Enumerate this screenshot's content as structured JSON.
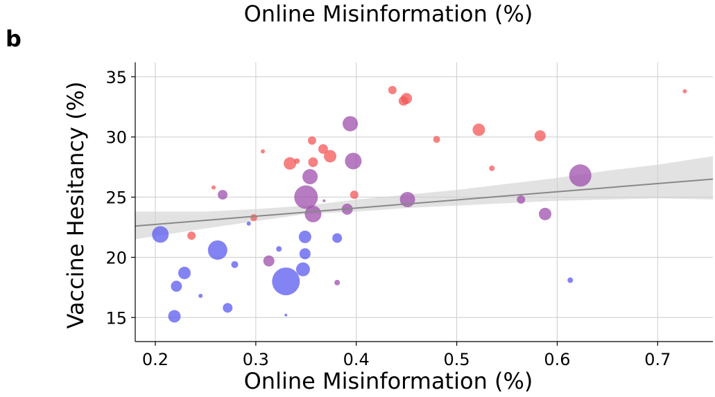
{
  "figure": {
    "top_title": "Online Misinformation (%)",
    "panel_label": "b"
  },
  "chart_data": {
    "type": "scatter",
    "title": "Online Misinformation (%)",
    "xlabel": "Online Misinformation (%)",
    "ylabel": "Vaccine Hesitancy (%)",
    "xlim": [
      0.18,
      0.755
    ],
    "ylim": [
      13,
      36.2
    ],
    "xticks": [
      0.2,
      0.3,
      0.4,
      0.5,
      0.6,
      0.7
    ],
    "xtick_labels": [
      "0.2",
      "0.3",
      "0.4",
      "0.5",
      "0.6",
      "0.7"
    ],
    "yticks": [
      15,
      20,
      25,
      30,
      35
    ],
    "ytick_labels": [
      "15",
      "20",
      "25",
      "30",
      "35"
    ],
    "grid": true,
    "colors": {
      "red": "#f45757",
      "purple": "#9e4fab",
      "blue": "#5959f0",
      "trend": "#888888",
      "band": "#cfcfcf"
    },
    "points": [
      {
        "x": 0.436,
        "y": 33.9,
        "s": 6,
        "c": "red"
      },
      {
        "x": 0.447,
        "y": 33.0,
        "s": 7,
        "c": "red"
      },
      {
        "x": 0.45,
        "y": 33.2,
        "s": 8,
        "c": "red"
      },
      {
        "x": 0.727,
        "y": 33.8,
        "s": 3,
        "c": "red"
      },
      {
        "x": 0.356,
        "y": 29.7,
        "s": 6,
        "c": "red"
      },
      {
        "x": 0.367,
        "y": 29.0,
        "s": 7,
        "c": "red"
      },
      {
        "x": 0.374,
        "y": 28.4,
        "s": 9,
        "c": "red"
      },
      {
        "x": 0.307,
        "y": 28.8,
        "s": 3,
        "c": "red"
      },
      {
        "x": 0.334,
        "y": 27.8,
        "s": 9,
        "c": "red"
      },
      {
        "x": 0.341,
        "y": 28.0,
        "s": 4,
        "c": "red"
      },
      {
        "x": 0.357,
        "y": 27.9,
        "s": 7,
        "c": "red"
      },
      {
        "x": 0.48,
        "y": 29.8,
        "s": 5,
        "c": "red"
      },
      {
        "x": 0.522,
        "y": 30.6,
        "s": 9,
        "c": "red"
      },
      {
        "x": 0.583,
        "y": 30.1,
        "s": 8,
        "c": "red"
      },
      {
        "x": 0.535,
        "y": 27.4,
        "s": 4,
        "c": "red"
      },
      {
        "x": 0.258,
        "y": 25.8,
        "s": 3,
        "c": "red"
      },
      {
        "x": 0.398,
        "y": 25.2,
        "s": 6,
        "c": "red"
      },
      {
        "x": 0.298,
        "y": 23.3,
        "s": 5,
        "c": "red"
      },
      {
        "x": 0.236,
        "y": 21.8,
        "s": 6,
        "c": "red"
      },
      {
        "x": 0.394,
        "y": 31.1,
        "s": 11,
        "c": "purple"
      },
      {
        "x": 0.397,
        "y": 28.0,
        "s": 12,
        "c": "purple"
      },
      {
        "x": 0.354,
        "y": 26.7,
        "s": 11,
        "c": "purple"
      },
      {
        "x": 0.267,
        "y": 25.2,
        "s": 7,
        "c": "purple"
      },
      {
        "x": 0.35,
        "y": 25.0,
        "s": 17,
        "c": "purple"
      },
      {
        "x": 0.368,
        "y": 24.7,
        "s": 2,
        "c": "purple"
      },
      {
        "x": 0.357,
        "y": 23.6,
        "s": 12,
        "c": "purple"
      },
      {
        "x": 0.391,
        "y": 24.0,
        "s": 8,
        "c": "purple"
      },
      {
        "x": 0.451,
        "y": 24.8,
        "s": 11,
        "c": "purple"
      },
      {
        "x": 0.564,
        "y": 24.8,
        "s": 6,
        "c": "purple"
      },
      {
        "x": 0.588,
        "y": 23.6,
        "s": 9,
        "c": "purple"
      },
      {
        "x": 0.623,
        "y": 26.8,
        "s": 16,
        "c": "purple"
      },
      {
        "x": 0.313,
        "y": 19.7,
        "s": 8,
        "c": "purple"
      },
      {
        "x": 0.381,
        "y": 17.9,
        "s": 4,
        "c": "purple"
      },
      {
        "x": 0.205,
        "y": 21.9,
        "s": 12,
        "c": "blue"
      },
      {
        "x": 0.293,
        "y": 22.8,
        "s": 3,
        "c": "blue"
      },
      {
        "x": 0.262,
        "y": 20.6,
        "s": 14,
        "c": "blue"
      },
      {
        "x": 0.279,
        "y": 19.4,
        "s": 5,
        "c": "blue"
      },
      {
        "x": 0.229,
        "y": 18.7,
        "s": 9,
        "c": "blue"
      },
      {
        "x": 0.221,
        "y": 17.6,
        "s": 8,
        "c": "blue"
      },
      {
        "x": 0.245,
        "y": 16.8,
        "s": 3,
        "c": "blue"
      },
      {
        "x": 0.219,
        "y": 15.1,
        "s": 9,
        "c": "blue"
      },
      {
        "x": 0.272,
        "y": 15.8,
        "s": 7,
        "c": "blue"
      },
      {
        "x": 0.323,
        "y": 20.7,
        "s": 4,
        "c": "blue"
      },
      {
        "x": 0.349,
        "y": 21.7,
        "s": 9,
        "c": "blue"
      },
      {
        "x": 0.349,
        "y": 20.3,
        "s": 8,
        "c": "blue"
      },
      {
        "x": 0.347,
        "y": 19.0,
        "s": 10,
        "c": "blue"
      },
      {
        "x": 0.33,
        "y": 18.0,
        "s": 20,
        "c": "blue"
      },
      {
        "x": 0.33,
        "y": 15.2,
        "s": 2,
        "c": "blue"
      },
      {
        "x": 0.381,
        "y": 21.6,
        "s": 7,
        "c": "blue"
      },
      {
        "x": 0.613,
        "y": 18.1,
        "s": 4,
        "c": "blue"
      }
    ],
    "trendline": {
      "x": [
        0.18,
        0.755
      ],
      "y": [
        22.6,
        26.5
      ]
    },
    "confidence_band": {
      "x": [
        0.18,
        0.25,
        0.3,
        0.35,
        0.4,
        0.45,
        0.5,
        0.55,
        0.6,
        0.65,
        0.7,
        0.755
      ],
      "upper": [
        23.8,
        23.8,
        24.0,
        24.3,
        24.8,
        25.2,
        25.6,
        26.1,
        26.6,
        27.2,
        27.7,
        28.4
      ],
      "lower": [
        21.5,
        22.4,
        23.0,
        23.6,
        23.8,
        24.1,
        24.3,
        24.5,
        24.7,
        24.8,
        24.9,
        24.8
      ]
    }
  }
}
